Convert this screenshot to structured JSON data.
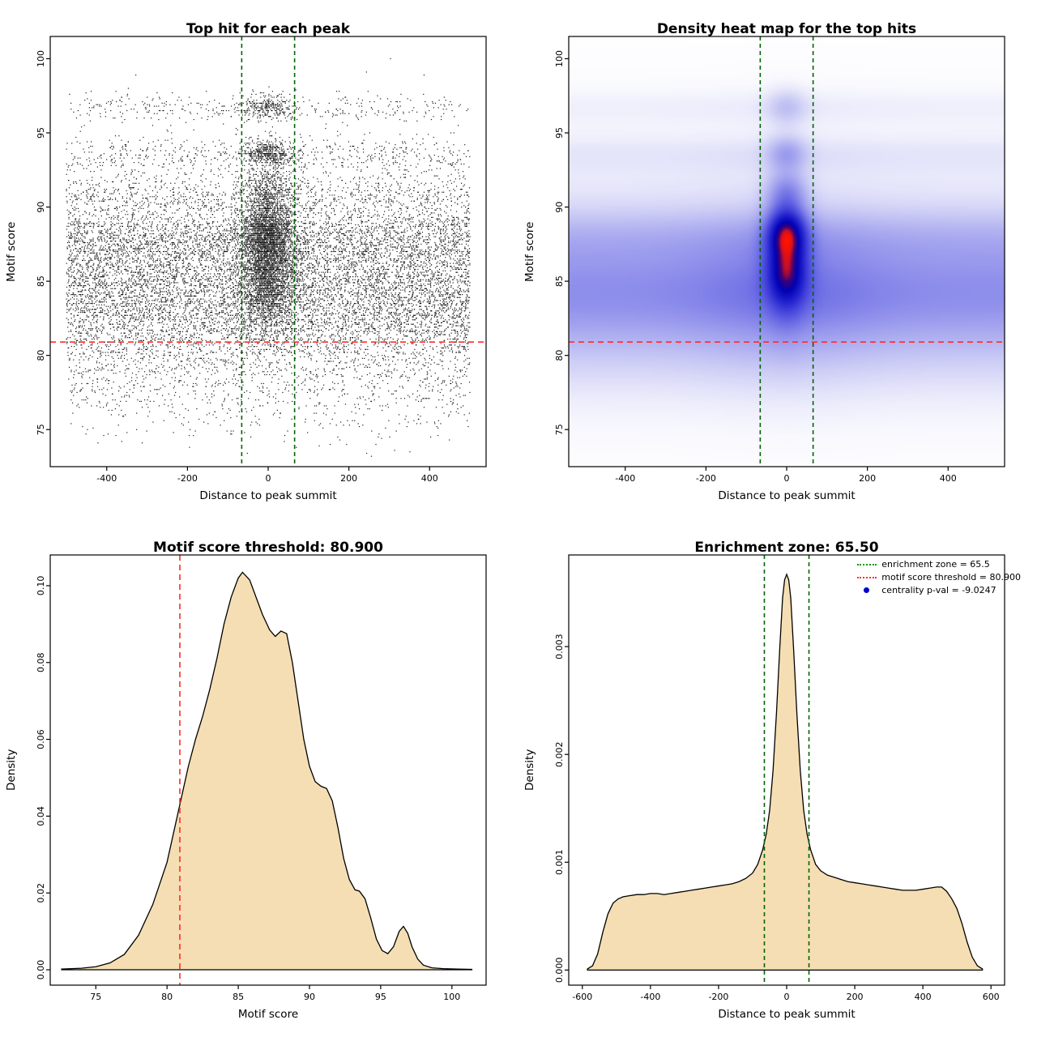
{
  "figure": {
    "background": "#ffffff"
  },
  "chart_data": [
    {
      "type": "scatter",
      "title": "Top hit for each peak",
      "xlabel": "Distance to peak summit",
      "ylabel": "Motif score",
      "xlim": [
        -540,
        540
      ],
      "ylim": [
        72.5,
        101.5
      ],
      "xtick_values": [
        -400,
        -200,
        0,
        200,
        400
      ],
      "xtick_labels": [
        "-400",
        "-200",
        "0",
        "200",
        "400"
      ],
      "ytick_values": [
        75,
        80,
        85,
        90,
        95,
        100
      ],
      "ytick_labels": [
        "75",
        "80",
        "85",
        "90",
        "95",
        "100"
      ],
      "point_color": "rgba(0,0,0,0.9)",
      "enrichment_zone": 65.5,
      "score_threshold": 80.9,
      "zone_line_color": "#006400",
      "threshold_line_color": "#ff2b2b",
      "seed": 1234,
      "n_background": 13500,
      "n_central": 5200,
      "background_x_range": [
        -500,
        500
      ],
      "central_x_sd": 33,
      "score_range": [
        73.2,
        100.6
      ],
      "quantize_step": 0.1,
      "background_score_mixture": [
        {
          "mean": 85.0,
          "sd": 2.3,
          "w": 0.4
        },
        {
          "mean": 87.9,
          "sd": 1.1,
          "w": 0.16
        },
        {
          "mean": 83.0,
          "sd": 2.0,
          "w": 0.15
        },
        {
          "mean": 90.8,
          "sd": 1.0,
          "w": 0.08
        },
        {
          "mean": 80.2,
          "sd": 2.3,
          "w": 0.1
        },
        {
          "mean": 93.5,
          "sd": 0.6,
          "w": 0.045
        },
        {
          "mean": 96.6,
          "sd": 0.5,
          "w": 0.025
        },
        {
          "mean": 77.3,
          "sd": 1.7,
          "w": 0.03
        },
        {
          "mean": 86.5,
          "sd": 6.0,
          "w": 0.01
        }
      ],
      "central_score_mixture": [
        {
          "mean": 88.3,
          "sd": 1.0,
          "w": 0.26
        },
        {
          "mean": 85.6,
          "sd": 1.4,
          "w": 0.27
        },
        {
          "mean": 87.0,
          "sd": 2.3,
          "w": 0.16
        },
        {
          "mean": 91.0,
          "sd": 0.9,
          "w": 0.1
        },
        {
          "mean": 93.6,
          "sd": 0.5,
          "w": 0.09
        },
        {
          "mean": 96.7,
          "sd": 0.45,
          "w": 0.06
        },
        {
          "mean": 83.0,
          "sd": 1.6,
          "w": 0.06
        }
      ]
    },
    {
      "type": "heatmap",
      "title": "Density heat map for the top hits",
      "xlabel": "Distance to peak summit",
      "ylabel": "Motif score",
      "xlim": [
        -540,
        540
      ],
      "ylim": [
        72.5,
        101.5
      ],
      "xtick_values": [
        -400,
        -200,
        0,
        200,
        400
      ],
      "xtick_labels": [
        "-400",
        "-200",
        "0",
        "200",
        "400"
      ],
      "ytick_values": [
        75,
        80,
        85,
        90,
        95,
        100
      ],
      "ytick_labels": [
        "75",
        "80",
        "85",
        "90",
        "95",
        "100"
      ],
      "enrichment_zone": 65.5,
      "score_threshold": 80.9,
      "zone_line_color": "#006400",
      "threshold_line_color": "#ff2b2b",
      "grid": {
        "nx": 200,
        "ny": 200
      },
      "background_weight": 0.28,
      "central_x_sd": 33,
      "background_x_bump": {
        "sd": 150,
        "amp": 0.35
      },
      "background_profile": [
        {
          "mean": 85.0,
          "sd": 2.2,
          "w": 1.0
        },
        {
          "mean": 88.0,
          "sd": 1.3,
          "w": 0.45
        },
        {
          "mean": 83.0,
          "sd": 2.0,
          "w": 0.5
        },
        {
          "mean": 80.5,
          "sd": 2.2,
          "w": 0.3
        },
        {
          "mean": 93.5,
          "sd": 0.8,
          "w": 0.14
        },
        {
          "mean": 96.7,
          "sd": 0.7,
          "w": 0.1
        },
        {
          "mean": 86.0,
          "sd": 5.0,
          "w": 0.35
        }
      ],
      "central_profile": [
        {
          "mean": 88.3,
          "sd": 1.1,
          "w": 1.0
        },
        {
          "mean": 85.6,
          "sd": 1.5,
          "w": 0.85
        },
        {
          "mean": 91.0,
          "sd": 0.9,
          "w": 0.3
        },
        {
          "mean": 93.6,
          "sd": 0.8,
          "w": 0.28
        },
        {
          "mean": 96.7,
          "sd": 0.8,
          "w": 0.18
        },
        {
          "mean": 87.0,
          "sd": 3.0,
          "w": 0.4
        }
      ],
      "gamma": 0.72,
      "color_stops": [
        [
          0.0,
          "#ffffff"
        ],
        [
          0.06,
          "#eeeefc"
        ],
        [
          0.18,
          "#c8c8f5"
        ],
        [
          0.35,
          "#9191ec"
        ],
        [
          0.52,
          "#5555e0"
        ],
        [
          0.68,
          "#2222cf"
        ],
        [
          0.82,
          "#0000b2"
        ],
        [
          0.9,
          "#3c0076"
        ],
        [
          0.95,
          "#d40f1e"
        ],
        [
          1.0,
          "#ff1400"
        ]
      ]
    },
    {
      "type": "area",
      "title": "Motif score threshold: 80.900",
      "xlabel": "Motif score",
      "ylabel": "Density",
      "xlim": [
        71.8,
        102.4
      ],
      "ylim": [
        -0.004,
        0.108
      ],
      "xtick_values": [
        75,
        80,
        85,
        90,
        95,
        100
      ],
      "xtick_labels": [
        "75",
        "80",
        "85",
        "90",
        "95",
        "100"
      ],
      "ytick_values": [
        0,
        0.02,
        0.04,
        0.06,
        0.08,
        0.1
      ],
      "ytick_labels": [
        "0.00",
        "0.02",
        "0.04",
        "0.06",
        "0.08",
        "0.10"
      ],
      "fill_color": "#f5deb3",
      "line_color": "#000000",
      "threshold": 80.9,
      "threshold_line_color": "#ff2b2b",
      "curve": [
        [
          72.6,
          0.0002
        ],
        [
          74,
          0.0004
        ],
        [
          75,
          0.0008
        ],
        [
          76,
          0.0018
        ],
        [
          77,
          0.004
        ],
        [
          78,
          0.009
        ],
        [
          79,
          0.017
        ],
        [
          80,
          0.028
        ],
        [
          80.9,
          0.043
        ],
        [
          81.5,
          0.053
        ],
        [
          82,
          0.06
        ],
        [
          82.5,
          0.066
        ],
        [
          83,
          0.073
        ],
        [
          83.5,
          0.081
        ],
        [
          84,
          0.09
        ],
        [
          84.5,
          0.097
        ],
        [
          85,
          0.102
        ],
        [
          85.3,
          0.1035
        ],
        [
          85.8,
          0.1015
        ],
        [
          86.2,
          0.0975
        ],
        [
          86.7,
          0.0925
        ],
        [
          87.2,
          0.0885
        ],
        [
          87.6,
          0.0868
        ],
        [
          88,
          0.0882
        ],
        [
          88.4,
          0.0875
        ],
        [
          88.8,
          0.08
        ],
        [
          89.2,
          0.07
        ],
        [
          89.6,
          0.06
        ],
        [
          90,
          0.053
        ],
        [
          90.4,
          0.049
        ],
        [
          90.8,
          0.0478
        ],
        [
          91.2,
          0.0472
        ],
        [
          91.6,
          0.044
        ],
        [
          92,
          0.037
        ],
        [
          92.4,
          0.029
        ],
        [
          92.8,
          0.0235
        ],
        [
          93.2,
          0.0208
        ],
        [
          93.5,
          0.0205
        ],
        [
          93.9,
          0.0185
        ],
        [
          94.3,
          0.0135
        ],
        [
          94.7,
          0.008
        ],
        [
          95.1,
          0.005
        ],
        [
          95.5,
          0.0042
        ],
        [
          95.9,
          0.006
        ],
        [
          96.3,
          0.01
        ],
        [
          96.6,
          0.0113
        ],
        [
          96.9,
          0.0095
        ],
        [
          97.2,
          0.006
        ],
        [
          97.6,
          0.0028
        ],
        [
          98,
          0.0012
        ],
        [
          98.6,
          0.0005
        ],
        [
          99.4,
          0.0003
        ],
        [
          100.4,
          0.0002
        ],
        [
          101.4,
          0.0001
        ]
      ]
    },
    {
      "type": "area",
      "title": "Enrichment zone: 65.50",
      "xlabel": "Distance to peak summit",
      "ylabel": "Density",
      "xlim": [
        -640,
        640
      ],
      "ylim": [
        -0.00014,
        0.00385
      ],
      "xtick_values": [
        -600,
        -400,
        -200,
        0,
        200,
        400,
        600
      ],
      "xtick_labels": [
        "-600",
        "-400",
        "-200",
        "0",
        "200",
        "400",
        "600"
      ],
      "ytick_values": [
        0,
        0.001,
        0.002,
        0.003
      ],
      "ytick_labels": [
        "0.000",
        "0.001",
        "0.002",
        "0.003"
      ],
      "fill_color": "#f5deb3",
      "line_color": "#000000",
      "enrichment_zone": 65.5,
      "zone_line_color": "#006400",
      "curve": [
        [
          -585,
          1e-05
        ],
        [
          -570,
          4e-05
        ],
        [
          -555,
          0.00015
        ],
        [
          -540,
          0.00035
        ],
        [
          -525,
          0.00052
        ],
        [
          -510,
          0.00062
        ],
        [
          -495,
          0.00066
        ],
        [
          -480,
          0.00068
        ],
        [
          -460,
          0.00069
        ],
        [
          -440,
          0.0007
        ],
        [
          -420,
          0.0007
        ],
        [
          -400,
          0.00071
        ],
        [
          -380,
          0.00071
        ],
        [
          -360,
          0.0007
        ],
        [
          -340,
          0.00071
        ],
        [
          -320,
          0.00072
        ],
        [
          -300,
          0.00073
        ],
        [
          -280,
          0.00074
        ],
        [
          -260,
          0.00075
        ],
        [
          -240,
          0.00076
        ],
        [
          -220,
          0.00077
        ],
        [
          -200,
          0.00078
        ],
        [
          -180,
          0.00079
        ],
        [
          -160,
          0.0008
        ],
        [
          -140,
          0.00082
        ],
        [
          -120,
          0.00085
        ],
        [
          -100,
          0.0009
        ],
        [
          -85,
          0.00098
        ],
        [
          -70,
          0.00112
        ],
        [
          -60,
          0.00126
        ],
        [
          -50,
          0.00148
        ],
        [
          -40,
          0.00185
        ],
        [
          -30,
          0.00238
        ],
        [
          -20,
          0.003
        ],
        [
          -12,
          0.00345
        ],
        [
          -6,
          0.00362
        ],
        [
          0,
          0.00367
        ],
        [
          6,
          0.00362
        ],
        [
          12,
          0.00345
        ],
        [
          20,
          0.003
        ],
        [
          30,
          0.00238
        ],
        [
          40,
          0.00185
        ],
        [
          50,
          0.00148
        ],
        [
          60,
          0.00126
        ],
        [
          70,
          0.00112
        ],
        [
          85,
          0.00098
        ],
        [
          100,
          0.00092
        ],
        [
          120,
          0.00088
        ],
        [
          140,
          0.00086
        ],
        [
          160,
          0.00084
        ],
        [
          180,
          0.00082
        ],
        [
          200,
          0.00081
        ],
        [
          220,
          0.0008
        ],
        [
          240,
          0.00079
        ],
        [
          260,
          0.00078
        ],
        [
          280,
          0.00077
        ],
        [
          300,
          0.00076
        ],
        [
          320,
          0.00075
        ],
        [
          340,
          0.00074
        ],
        [
          360,
          0.00074
        ],
        [
          380,
          0.00074
        ],
        [
          400,
          0.00075
        ],
        [
          420,
          0.00076
        ],
        [
          440,
          0.00077
        ],
        [
          455,
          0.00077
        ],
        [
          470,
          0.00073
        ],
        [
          485,
          0.00066
        ],
        [
          500,
          0.00057
        ],
        [
          515,
          0.00043
        ],
        [
          530,
          0.00026
        ],
        [
          545,
          0.00012
        ],
        [
          560,
          4e-05
        ],
        [
          575,
          1e-05
        ]
      ],
      "legend": [
        {
          "label": "enrichment zone = 65.5",
          "color": "#009800",
          "glyph": "dotted-line"
        },
        {
          "label": "motif score threshold = 80.900",
          "color": "#ff2b2b",
          "glyph": "dotted-line"
        },
        {
          "label": "centrality p-val = -9.0247",
          "color": "#0000cd",
          "glyph": "point"
        }
      ]
    }
  ]
}
